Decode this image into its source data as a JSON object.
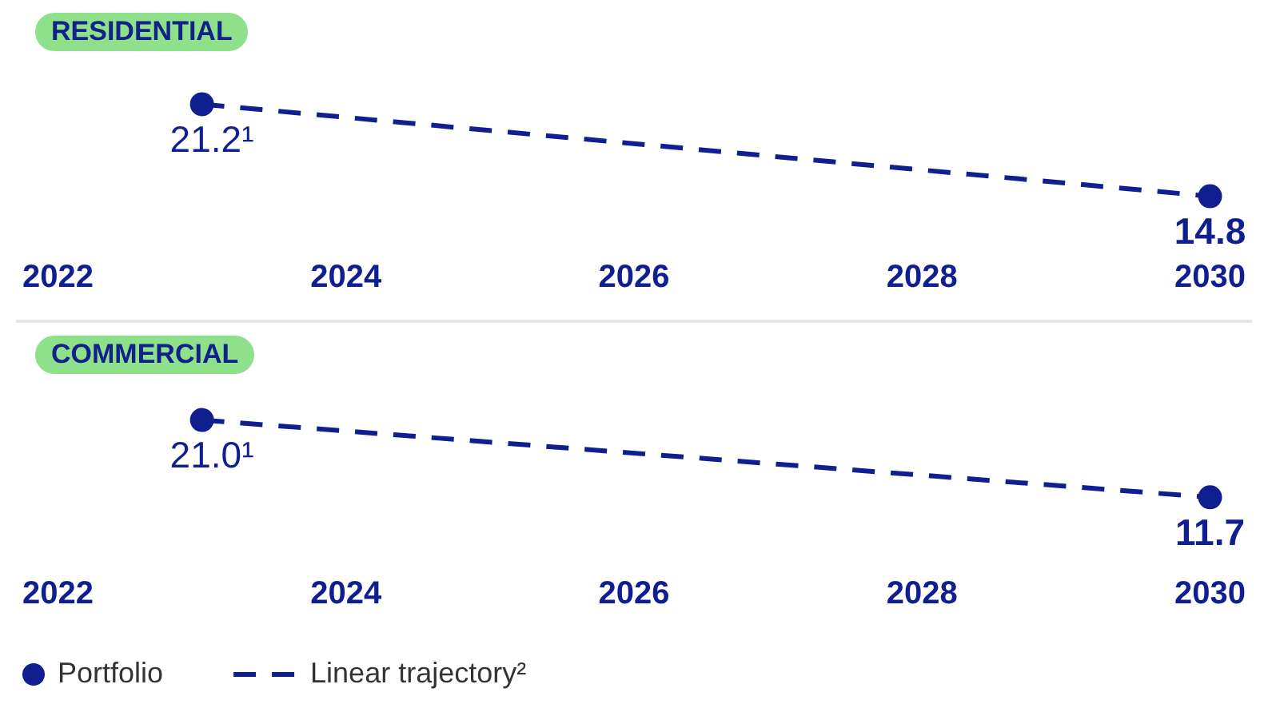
{
  "chart_data": [
    {
      "type": "line",
      "title": "RESIDENTIAL",
      "xlim": [
        "2022",
        "2030"
      ],
      "xticks": [
        "2022",
        "2024",
        "2026",
        "2028",
        "2030"
      ],
      "grid": false,
      "legend": false,
      "series": [
        {
          "type": "scatter",
          "color": "#0f1f8f",
          "marker": "circle",
          "x": [
            "2023",
            "2030"
          ],
          "values": [
            21.2,
            14.8
          ],
          "value_labels": [
            "21.2¹",
            "14.8"
          ]
        },
        {
          "type": "line",
          "color": "#0f1f8f",
          "line_style": "dashed",
          "marker": "none",
          "x": [
            "2023",
            "2030"
          ],
          "values": [
            21.2,
            14.8
          ]
        }
      ]
    },
    {
      "type": "line",
      "title": "COMMERCIAL",
      "xlim": [
        "2022",
        "2030"
      ],
      "xticks": [
        "2022",
        "2024",
        "2026",
        "2028",
        "2030"
      ],
      "grid": false,
      "legend": "bottom left",
      "series": [
        {
          "type": "scatter",
          "name": "Portfolio",
          "color": "#0f1f8f",
          "marker": "circle",
          "x": [
            "2023",
            "2030"
          ],
          "values": [
            21.0,
            11.7
          ],
          "value_labels": [
            "21.0¹",
            "11.7"
          ]
        },
        {
          "type": "line",
          "name": "Linear trajectory²",
          "color": "#0f1f8f",
          "line_style": "dashed",
          "marker": "none",
          "x": [
            "2023",
            "2030"
          ],
          "values": [
            21.0,
            11.7
          ]
        }
      ]
    }
  ]
}
